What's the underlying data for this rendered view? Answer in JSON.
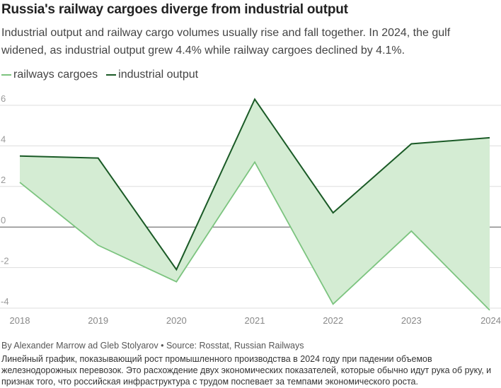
{
  "chart_data": {
    "type": "line",
    "title": "Russia's railway cargoes diverge from industrial output",
    "subtitle": "Industrial output and railway cargo volumes usually rise and fall together. In 2024, the gulf widened, as industrial output grew 4.4% while railway cargoes declined by 4.1%.",
    "x": [
      "2018",
      "2019",
      "2020",
      "2021",
      "2022",
      "2023",
      "2024"
    ],
    "series": [
      {
        "name": "railways cargoes",
        "color": "#7cc47f",
        "values": [
          2.2,
          -0.9,
          -2.7,
          3.2,
          -3.8,
          -0.2,
          -4.1
        ]
      },
      {
        "name": "industrial output",
        "color": "#1a5a26",
        "values": [
          3.5,
          3.4,
          -2.1,
          6.3,
          0.7,
          4.1,
          4.4
        ]
      }
    ],
    "fill_between_color": "#d4ecd3",
    "ylim": [
      -4,
      6
    ],
    "yticks": [
      "6",
      "4",
      "2",
      "0",
      "-2",
      "-4"
    ],
    "ytick_values": [
      6,
      4,
      2,
      0,
      -2,
      -4
    ],
    "xlabel": "",
    "ylabel": "",
    "grid": true,
    "legend": "top-left"
  },
  "byline": "By Alexander Marrow ad Gleb Stolyarov • Source: Rosstat, Russian Railways",
  "description": "Линейный график, показывающий рост промышленного производства в 2024 году при падении объемов железнодорожных перевозок. Это расхождение двух экономических показателей, которые обычно идут рука об руку, и признак того, что российская инфраструктура с трудом поспевает за темпами экономического роста."
}
